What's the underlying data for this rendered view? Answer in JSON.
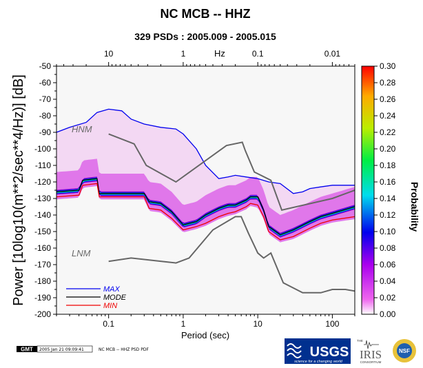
{
  "chart_data": {
    "type": "line",
    "title": "NC MCB -- HHZ",
    "subtitle": "329 PSDs : 2005.009 - 2005.015",
    "xlabel": "Period (sec)",
    "ylabel": "Power [10log10(m**2/sec**4/Hz)] [dB]",
    "top_axis_label": "Hz",
    "x_scale": "log",
    "xlim": [
      0.02,
      200
    ],
    "ylim": [
      -200,
      -50
    ],
    "x_ticks": [
      "0.1",
      "1",
      "10",
      "100"
    ],
    "top_ticks": [
      "10",
      "1",
      "0.1",
      "0.01"
    ],
    "y_ticks": [
      "-50",
      "-60",
      "-70",
      "-80",
      "-90",
      "-100",
      "-110",
      "-120",
      "-130",
      "-140",
      "-150",
      "-160",
      "-170",
      "-180",
      "-190",
      "-200"
    ],
    "colorbar": {
      "label": "Probability",
      "range": [
        0,
        0.3
      ],
      "ticks": [
        "0.30",
        "0.28",
        "0.26",
        "0.24",
        "0.22",
        "0.20",
        "0.18",
        "0.16",
        "0.14",
        "0.12",
        "0.10",
        "0.08",
        "0.06",
        "0.04",
        "0.02",
        "0.00"
      ]
    },
    "model_labels": [
      "HNM",
      "LNM"
    ],
    "legend": [
      "MAX",
      "MODE",
      "MIN"
    ],
    "series": [
      {
        "name": "MAX",
        "color": "#0000ee",
        "points": [
          [
            0.02,
            -90
          ],
          [
            0.03,
            -87
          ],
          [
            0.05,
            -84
          ],
          [
            0.07,
            -78
          ],
          [
            0.1,
            -76
          ],
          [
            0.15,
            -77
          ],
          [
            0.2,
            -82
          ],
          [
            0.3,
            -85
          ],
          [
            0.5,
            -87
          ],
          [
            0.8,
            -88
          ],
          [
            1,
            -91
          ],
          [
            1.5,
            -100
          ],
          [
            2,
            -110
          ],
          [
            3,
            -118
          ],
          [
            4,
            -117
          ],
          [
            5,
            -116
          ],
          [
            7,
            -117
          ],
          [
            10,
            -118
          ],
          [
            14,
            -120
          ],
          [
            20,
            -121
          ],
          [
            30,
            -127
          ],
          [
            40,
            -126
          ],
          [
            50,
            -124
          ],
          [
            70,
            -123
          ],
          [
            100,
            -122
          ],
          [
            200,
            -122
          ]
        ]
      },
      {
        "name": "MODE",
        "color": "#000000",
        "points": [
          [
            0.02,
            -126
          ],
          [
            0.04,
            -125
          ],
          [
            0.045,
            -119
          ],
          [
            0.07,
            -118
          ],
          [
            0.075,
            -127
          ],
          [
            0.1,
            -127
          ],
          [
            0.3,
            -127
          ],
          [
            0.35,
            -132
          ],
          [
            0.5,
            -133
          ],
          [
            0.7,
            -138
          ],
          [
            1,
            -146
          ],
          [
            1.5,
            -144
          ],
          [
            2,
            -140
          ],
          [
            3,
            -136
          ],
          [
            4,
            -134
          ],
          [
            5,
            -134
          ],
          [
            7,
            -131
          ],
          [
            8,
            -129
          ],
          [
            10,
            -129
          ],
          [
            12,
            -137
          ],
          [
            14,
            -147
          ],
          [
            20,
            -152
          ],
          [
            30,
            -149
          ],
          [
            50,
            -144
          ],
          [
            70,
            -141
          ],
          [
            100,
            -139
          ],
          [
            200,
            -135
          ]
        ]
      },
      {
        "name": "MIN",
        "color": "#ee0000",
        "points": [
          [
            0.02,
            -129
          ],
          [
            0.04,
            -128
          ],
          [
            0.045,
            -122
          ],
          [
            0.07,
            -121
          ],
          [
            0.075,
            -129
          ],
          [
            0.1,
            -129
          ],
          [
            0.3,
            -129
          ],
          [
            0.35,
            -136
          ],
          [
            0.5,
            -137
          ],
          [
            0.7,
            -142
          ],
          [
            1,
            -149
          ],
          [
            1.5,
            -147
          ],
          [
            2,
            -145
          ],
          [
            3,
            -141
          ],
          [
            4,
            -139
          ],
          [
            5,
            -138
          ],
          [
            7,
            -135
          ],
          [
            8,
            -133
          ],
          [
            10,
            -134
          ],
          [
            12,
            -141
          ],
          [
            14,
            -150
          ],
          [
            20,
            -155
          ],
          [
            30,
            -153
          ],
          [
            50,
            -148
          ],
          [
            70,
            -145
          ],
          [
            100,
            -143
          ],
          [
            200,
            -141
          ]
        ]
      },
      {
        "name": "HNM",
        "color": "#666666",
        "points": [
          [
            0.1,
            -91
          ],
          [
            0.22,
            -97
          ],
          [
            0.32,
            -110
          ],
          [
            0.8,
            -120
          ],
          [
            3.8,
            -98
          ],
          [
            6.2,
            -96
          ],
          [
            6.8,
            -101
          ],
          [
            9,
            -114
          ],
          [
            15,
            -119
          ],
          [
            21,
            -137
          ],
          [
            100,
            -130
          ],
          [
            200,
            -125
          ]
        ]
      },
      {
        "name": "LNM",
        "color": "#666666",
        "points": [
          [
            0.1,
            -168
          ],
          [
            0.2,
            -166
          ],
          [
            0.8,
            -169
          ],
          [
            1.2,
            -166
          ],
          [
            2.5,
            -149
          ],
          [
            5,
            -141
          ],
          [
            6,
            -141
          ],
          [
            7.5,
            -151
          ],
          [
            10,
            -163
          ],
          [
            12,
            -166
          ],
          [
            15,
            -163
          ],
          [
            22,
            -181
          ],
          [
            40,
            -187
          ],
          [
            70,
            -187
          ],
          [
            100,
            -185
          ],
          [
            150,
            -185
          ],
          [
            200,
            -186
          ]
        ]
      }
    ]
  },
  "footer": {
    "gmt_label": "GMT",
    "timestamp": "2005 Jan 21 09:09:41",
    "caption": "NC MCB -- HHZ PSD PDF"
  },
  "logos": {
    "usgs": "USGS",
    "usgs_tagline": "science for a changing world",
    "iris_prefix": "THE",
    "iris": "IRIS",
    "iris_sub": "CONSORTIUM",
    "nsf": "NSF"
  }
}
